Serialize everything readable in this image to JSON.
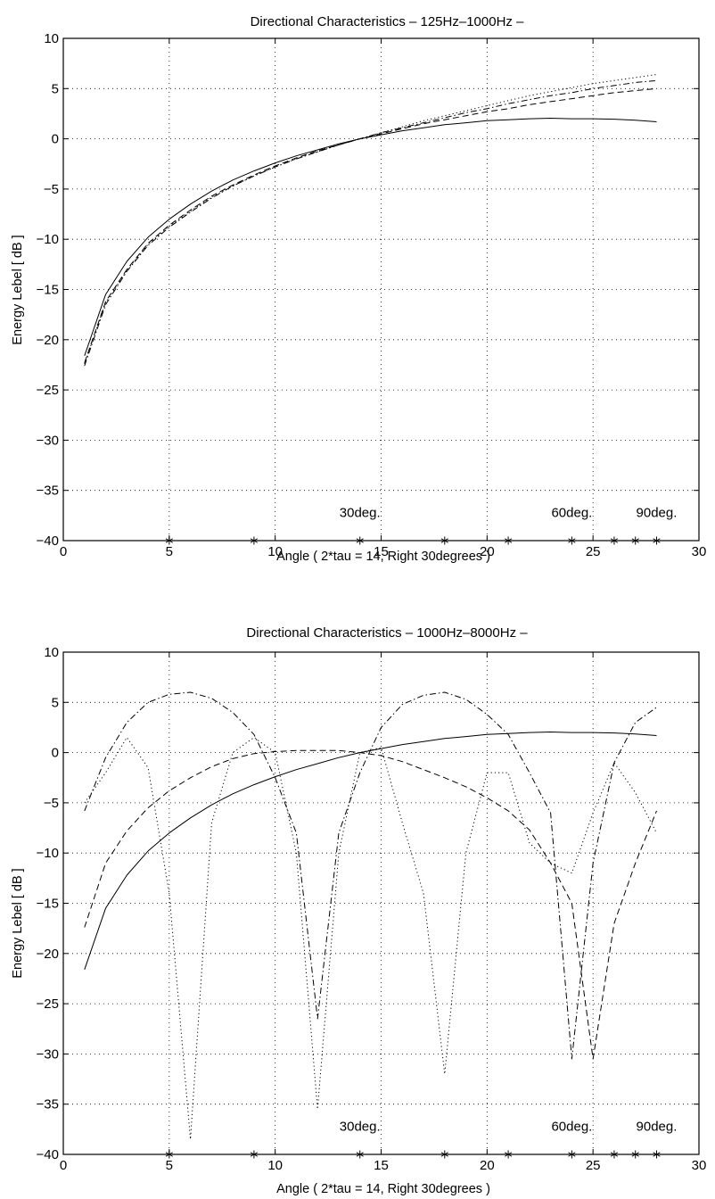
{
  "chart_data": [
    {
      "type": "line",
      "title": "Directional  Characteristics    –  125Hz–1000Hz  –",
      "xlabel": "Angle      ( 2*tau = 14,  Right 30degrees )",
      "ylabel": "Energy  Lebel  [ dB ]",
      "xlim": [
        0,
        30
      ],
      "ylim": [
        -40,
        10
      ],
      "xticks": [
        0,
        5,
        10,
        15,
        20,
        25,
        30
      ],
      "yticks": [
        -40,
        -35,
        -30,
        -25,
        -20,
        -15,
        -10,
        -5,
        0,
        5,
        10
      ],
      "grid": true,
      "markers": {
        "x": [
          5,
          9,
          14,
          18,
          21,
          24,
          26,
          27,
          28
        ],
        "y": -40,
        "symbol": "*"
      },
      "annotations": [
        {
          "text": "30deg.",
          "x": 14,
          "y": -37.2
        },
        {
          "text": "60deg.",
          "x": 24,
          "y": -37.2
        },
        {
          "text": "90deg.",
          "x": 28,
          "y": -37.2
        }
      ],
      "series": [
        {
          "style": "solid",
          "x": [
            1,
            2,
            3,
            4,
            5,
            6,
            7,
            8,
            9,
            10,
            11,
            12,
            13,
            14,
            15,
            16,
            17,
            18,
            19,
            20,
            21,
            22,
            23,
            24,
            25,
            26,
            27,
            28
          ],
          "values": [
            -21.6,
            -15.5,
            -12.2,
            -9.8,
            -8.0,
            -6.5,
            -5.2,
            -4.1,
            -3.2,
            -2.4,
            -1.7,
            -1.1,
            -0.5,
            0.0,
            0.4,
            0.8,
            1.1,
            1.4,
            1.6,
            1.8,
            1.9,
            2.0,
            2.05,
            2.0,
            2.0,
            1.95,
            1.85,
            1.7
          ]
        },
        {
          "style": "dashed",
          "x": [
            1,
            2,
            3,
            4,
            5,
            6,
            7,
            8,
            9,
            10,
            11,
            12,
            13,
            14,
            15,
            16,
            17,
            18,
            19,
            20,
            21,
            22,
            23,
            24,
            25,
            26,
            27,
            28
          ],
          "values": [
            -22.3,
            -16.2,
            -13.0,
            -10.4,
            -8.6,
            -7.1,
            -5.7,
            -4.6,
            -3.6,
            -2.7,
            -1.9,
            -1.2,
            -0.6,
            0.0,
            0.5,
            1.0,
            1.5,
            1.9,
            2.3,
            2.7,
            3.0,
            3.4,
            3.7,
            4.0,
            4.3,
            4.6,
            4.8,
            5.0
          ]
        },
        {
          "style": "dashdot",
          "x": [
            1,
            2,
            3,
            4,
            5,
            6,
            7,
            8,
            9,
            10,
            11,
            12,
            13,
            14,
            15,
            16,
            17,
            18,
            19,
            20,
            21,
            22,
            23,
            24,
            25,
            26,
            27,
            28
          ],
          "values": [
            -22.6,
            -16.5,
            -13.2,
            -10.6,
            -8.8,
            -7.3,
            -5.9,
            -4.7,
            -3.7,
            -2.8,
            -2.0,
            -1.3,
            -0.6,
            0.0,
            0.6,
            1.1,
            1.6,
            2.1,
            2.6,
            3.0,
            3.5,
            3.9,
            4.3,
            4.6,
            5.0,
            5.3,
            5.6,
            5.8
          ]
        },
        {
          "style": "dotted",
          "x": [
            1,
            2,
            3,
            4,
            5,
            6,
            7,
            8,
            9,
            10,
            11,
            12,
            13,
            14,
            15,
            16,
            17,
            18,
            19,
            20,
            21,
            22,
            23,
            24,
            25,
            26,
            27,
            28
          ],
          "values": [
            -22.4,
            -16.3,
            -13.1,
            -10.5,
            -8.7,
            -7.2,
            -5.8,
            -4.7,
            -3.7,
            -2.8,
            -2.0,
            -1.3,
            -0.6,
            0.0,
            0.6,
            1.2,
            1.8,
            2.3,
            2.8,
            3.3,
            3.8,
            4.3,
            4.7,
            5.1,
            5.5,
            5.8,
            6.1,
            6.4
          ]
        }
      ]
    },
    {
      "type": "line",
      "title": "Directional  Characteristics    –  1000Hz–8000Hz  –",
      "xlabel": "Angle      ( 2*tau = 14,  Right 30degrees )",
      "ylabel": "Energy  Lebel  [ dB ]",
      "xlim": [
        0,
        30
      ],
      "ylim": [
        -40,
        10
      ],
      "xticks": [
        0,
        5,
        10,
        15,
        20,
        25,
        30
      ],
      "yticks": [
        -40,
        -35,
        -30,
        -25,
        -20,
        -15,
        -10,
        -5,
        0,
        5,
        10
      ],
      "grid": true,
      "markers": {
        "x": [
          5,
          9,
          14,
          18,
          21,
          24,
          26,
          27,
          28
        ],
        "y": -40,
        "symbol": "*"
      },
      "annotations": [
        {
          "text": "30deg.",
          "x": 14,
          "y": -37.2
        },
        {
          "text": "60deg.",
          "x": 24,
          "y": -37.2
        },
        {
          "text": "90deg.",
          "x": 28,
          "y": -37.2
        }
      ],
      "series": [
        {
          "style": "solid",
          "x": [
            1,
            2,
            3,
            4,
            5,
            6,
            7,
            8,
            9,
            10,
            11,
            12,
            13,
            14,
            15,
            16,
            17,
            18,
            19,
            20,
            21,
            22,
            23,
            24,
            25,
            26,
            27,
            28
          ],
          "values": [
            -21.6,
            -15.5,
            -12.2,
            -9.8,
            -8.0,
            -6.5,
            -5.2,
            -4.1,
            -3.2,
            -2.4,
            -1.7,
            -1.1,
            -0.5,
            0.0,
            0.4,
            0.8,
            1.1,
            1.4,
            1.6,
            1.8,
            1.9,
            2.0,
            2.05,
            2.0,
            2.0,
            1.95,
            1.85,
            1.7
          ]
        },
        {
          "style": "dashed",
          "x": [
            1,
            2,
            3,
            4,
            5,
            6,
            7,
            8,
            9,
            10,
            11,
            12,
            13,
            14,
            15,
            16,
            17,
            18,
            19,
            20,
            21,
            22,
            23,
            24,
            25,
            26,
            27,
            28
          ],
          "values": [
            -17.4,
            -11.0,
            -7.8,
            -5.5,
            -3.8,
            -2.5,
            -1.4,
            -0.6,
            -0.1,
            0.1,
            0.2,
            0.2,
            0.2,
            0.0,
            -0.3,
            -0.9,
            -1.7,
            -2.5,
            -3.4,
            -4.5,
            -5.8,
            -7.7,
            -11.0,
            -15.0,
            -30.5,
            -17.0,
            -11.0,
            -5.8
          ]
        },
        {
          "style": "dashdot",
          "x": [
            1,
            2,
            3,
            4,
            5,
            6,
            7,
            8,
            9,
            10,
            11,
            12,
            13,
            14,
            15,
            16,
            17,
            18,
            19,
            20,
            21,
            22,
            23,
            24,
            25,
            26,
            27,
            28
          ],
          "values": [
            -5.8,
            -0.5,
            3.0,
            5.0,
            5.8,
            6.0,
            5.4,
            4.0,
            1.8,
            -2.5,
            -8.0,
            -26.5,
            -8.0,
            -2.0,
            2.5,
            4.8,
            5.7,
            6.0,
            5.3,
            3.8,
            1.8,
            -2.0,
            -6.0,
            -30.5,
            -11.0,
            -1.0,
            3.0,
            4.5
          ]
        },
        {
          "style": "dotted",
          "x": [
            1,
            2,
            3,
            4,
            5,
            6,
            7,
            8,
            9,
            10,
            11,
            12,
            13,
            14,
            15,
            16,
            17,
            18,
            19,
            20,
            21,
            22,
            23,
            24,
            25,
            26,
            27,
            28
          ],
          "values": [
            -5.0,
            -2.0,
            1.5,
            -1.5,
            -14.0,
            -38.5,
            -7.0,
            0.0,
            1.5,
            0.0,
            -10.0,
            -35.5,
            -10.0,
            0.0,
            0.5,
            -7.0,
            -14.0,
            -32.0,
            -10.0,
            -2.0,
            -2.0,
            -9.0,
            -11.0,
            -12.0,
            -6.0,
            -1.0,
            -4.0,
            -8.0
          ]
        }
      ]
    }
  ]
}
